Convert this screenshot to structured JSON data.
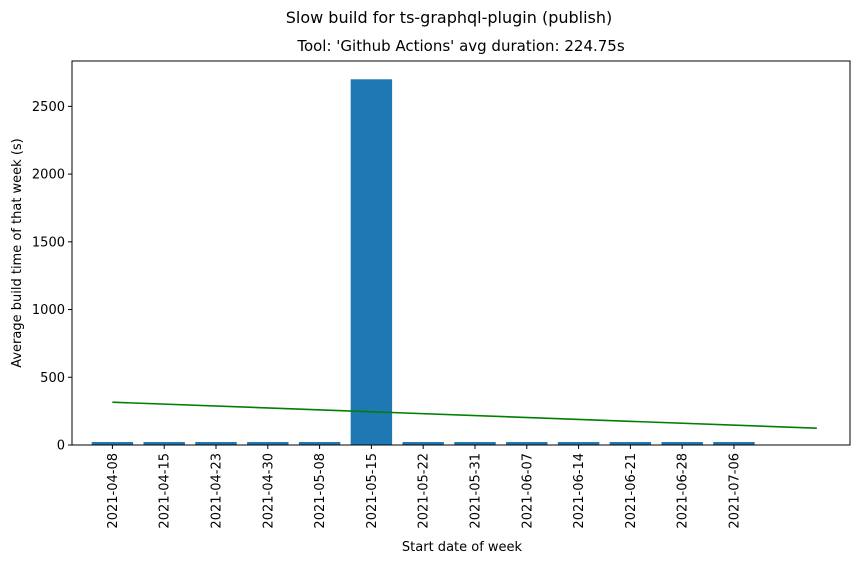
{
  "chart_data": {
    "type": "bar",
    "suptitle": "Slow build for ts-graphql-plugin (publish)",
    "title": "Tool: 'Github Actions' avg duration: 224.75s",
    "xlabel": "Start date of week",
    "ylabel": "Average build time of that week (s)",
    "categories": [
      "2021-04-08",
      "2021-04-15",
      "2021-04-23",
      "2021-04-30",
      "2021-05-08",
      "2021-05-15",
      "2021-05-22",
      "2021-05-31",
      "2021-06-07",
      "2021-06-14",
      "2021-06-21",
      "2021-06-28",
      "2021-07-06"
    ],
    "values": [
      22,
      22,
      22,
      22,
      22,
      2700,
      22,
      22,
      22,
      22,
      22,
      22,
      22
    ],
    "bar_color": "#1f77b4",
    "trend": {
      "color": "#008000",
      "start": 316,
      "end": 124,
      "x_start_index": 0,
      "x_end_index": 13.6
    },
    "yticks": [
      0,
      500,
      1000,
      1500,
      2000,
      2500
    ],
    "ylim": [
      0,
      2835
    ],
    "xlim": [
      -0.78,
      14.24
    ],
    "grid": false,
    "legend": "none"
  }
}
